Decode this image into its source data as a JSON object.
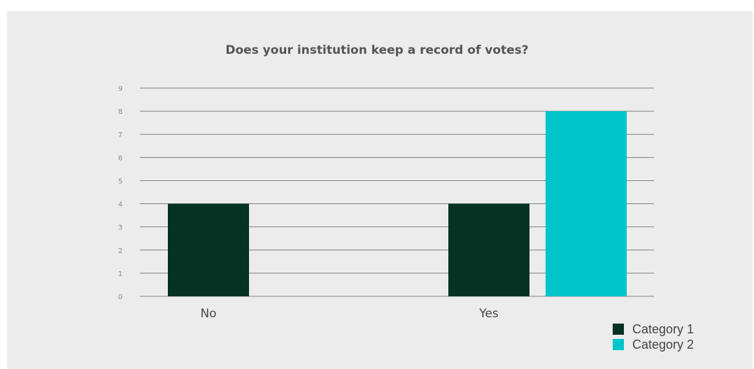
{
  "chart_data": {
    "type": "bar",
    "title": "Does your institution keep a record of votes?",
    "xlabel": "",
    "ylabel": "",
    "categories": [
      "No",
      "Yes"
    ],
    "series": [
      {
        "name": "Category 1",
        "values": [
          4,
          4
        ],
        "color": "#053222"
      },
      {
        "name": "Category 2",
        "values": [
          0,
          8
        ],
        "color": "#00c5cb"
      }
    ],
    "ylim": [
      0,
      9
    ],
    "yticks": [
      "0",
      "1",
      "2",
      "3",
      "4",
      "5",
      "6",
      "7",
      "8",
      "9"
    ],
    "grid": true,
    "legend_position": "bottom-right"
  },
  "colors": {
    "background": "#ececec",
    "gridline": "#7f7f7f",
    "text": "#555555"
  }
}
